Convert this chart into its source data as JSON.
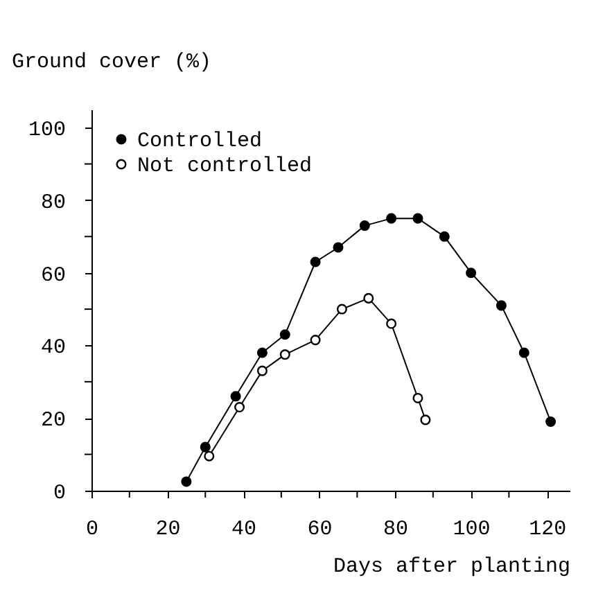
{
  "chart_data": {
    "type": "line",
    "ylabel": "Ground cover (%)",
    "xlabel": "Days after planting",
    "series": [
      {
        "name": "Controlled",
        "color": "#000000",
        "marker": "circle",
        "x": [
          25,
          30,
          38,
          45,
          51,
          59,
          65,
          72,
          79,
          86,
          93,
          100,
          108,
          114,
          121
        ],
        "values": [
          2.5,
          12,
          26,
          38,
          43,
          63,
          67,
          73,
          75,
          75,
          70,
          60,
          51,
          38,
          19
        ]
      },
      {
        "name": "Not controlled",
        "color": "#000000",
        "marker": "circle",
        "x": [
          31,
          39,
          45,
          51,
          59,
          66,
          73,
          79,
          86,
          88
        ],
        "values": [
          9.5,
          23,
          33,
          37.5,
          41.5,
          50,
          53,
          46,
          25.5,
          19.5
        ]
      }
    ],
    "xlim": [
      0,
      126
    ],
    "ylim": [
      0,
      105
    ],
    "xticks": [
      0,
      {
        "value": 10,
        "label": null
      },
      20,
      {
        "value": 30,
        "label": null
      },
      40,
      {
        "value": 50,
        "label": null
      },
      60,
      {
        "value": 70,
        "label": null
      },
      80,
      {
        "value": 90,
        "label": null
      },
      100,
      {
        "value": 110,
        "label": null
      },
      120
    ],
    "yticks": [
      0,
      {
        "value": 10,
        "label": null
      },
      20,
      {
        "value": 30,
        "label": null
      },
      40,
      {
        "value": 50,
        "label": null
      },
      60,
      {
        "value": 70,
        "label": null
      },
      80,
      {
        "value": 90,
        "label": null
      },
      100
    ],
    "grid": false,
    "legend": "top left",
    "line_style": "solid"
  }
}
